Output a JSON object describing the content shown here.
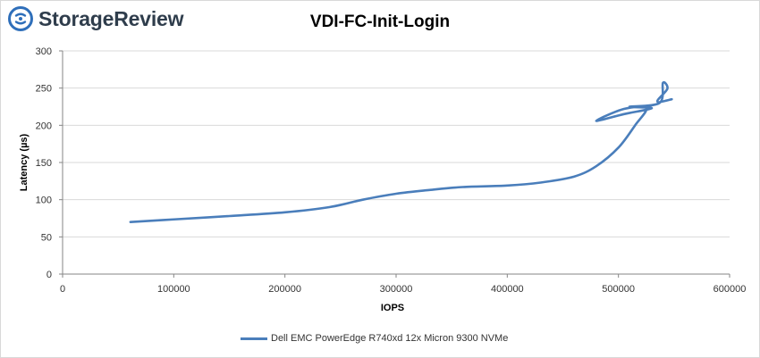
{
  "brand": {
    "name": "StorageReview",
    "accent": "#2f6fba"
  },
  "colors": {
    "series": "#4a7ebb",
    "grid": "#d9d9d9",
    "axis": "#868686"
  },
  "chart_data": {
    "type": "line",
    "title": "VDI-FC-Init-Login",
    "xlabel": "IOPS",
    "ylabel": "Latency (µs)",
    "xlim": [
      0,
      600000
    ],
    "ylim": [
      0,
      300
    ],
    "xticks": [
      0,
      100000,
      200000,
      300000,
      400000,
      500000,
      600000
    ],
    "yticks": [
      0,
      50,
      100,
      150,
      200,
      250,
      300
    ],
    "grid": "horizontal",
    "legend_position": "bottom",
    "series": [
      {
        "name": "Dell EMC PowerEdge R740xd 12x Micron 9300 NVMe",
        "color": "#4a7ebb",
        "points": [
          [
            61000,
            70
          ],
          [
            100000,
            73.5
          ],
          [
            150000,
            78
          ],
          [
            200000,
            83
          ],
          [
            240000,
            90
          ],
          [
            270000,
            100
          ],
          [
            300000,
            108
          ],
          [
            330000,
            113
          ],
          [
            360000,
            117
          ],
          [
            400000,
            119
          ],
          [
            430000,
            123
          ],
          [
            460000,
            131
          ],
          [
            480000,
            145
          ],
          [
            500000,
            170
          ],
          [
            515000,
            200
          ],
          [
            525000,
            223
          ],
          [
            505000,
            222
          ],
          [
            480000,
            206
          ],
          [
            505000,
            215
          ],
          [
            530000,
            223
          ],
          [
            510000,
            225
          ],
          [
            537000,
            230
          ],
          [
            540000,
            257
          ],
          [
            544000,
            249
          ],
          [
            535000,
            232
          ],
          [
            548000,
            235
          ]
        ]
      }
    ]
  }
}
